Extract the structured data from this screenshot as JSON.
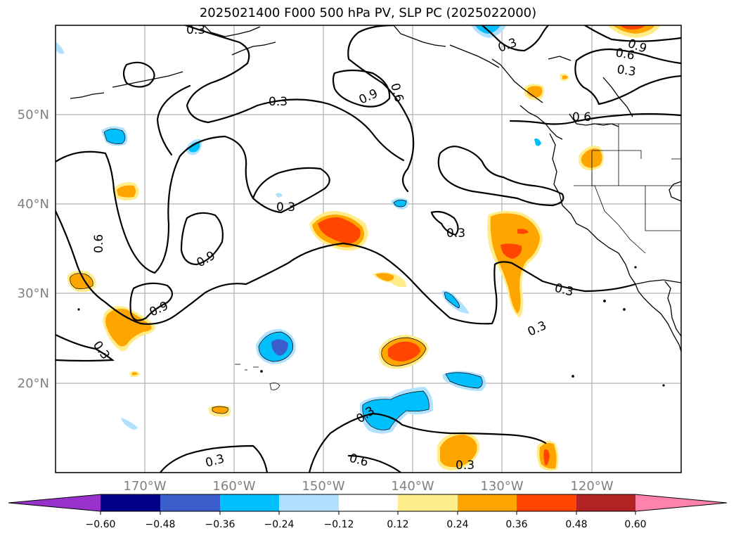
{
  "title": "2025021400 F000 500 hPa PV, SLP PC (2025022000)",
  "map": {
    "lon_range": [
      -180,
      -110
    ],
    "lat_range": [
      10,
      60
    ],
    "lon_ticks": [
      "170°W",
      "160°W",
      "150°W",
      "140°W",
      "130°W",
      "120°W"
    ],
    "lat_ticks": [
      "50°N",
      "40°N",
      "30°N",
      "20°N"
    ],
    "grid": true
  },
  "colorbar": {
    "ticks": [
      "−0.60",
      "−0.48",
      "−0.36",
      "−0.24",
      "−0.12",
      "0.12",
      "0.24",
      "0.36",
      "0.48",
      "0.60"
    ],
    "colors": [
      "#9932cc",
      "#00008b",
      "#3a5fcd",
      "#00bfff",
      "#b0e2ff",
      "#ffffff",
      "#ffec8b",
      "#ffa500",
      "#ff4500",
      "#b22222",
      "#ff82ab"
    ]
  },
  "contour_labels": {
    "l1": "0.3",
    "l2": "0.3",
    "l3": "0.9",
    "l4": "0.6",
    "l5": "0.3",
    "l6": "0.9",
    "l7": "0.6",
    "l8": "0.3",
    "l9": "0.6",
    "l10": "0.3",
    "l11": "0.3",
    "l12": "0.9",
    "l13": "0.9",
    "l14": "0.3",
    "l15": "0.3",
    "l16": "0.3",
    "l17": "0.3",
    "l18": "0.3",
    "l19": "0.6",
    "l20": "0.3"
  }
}
